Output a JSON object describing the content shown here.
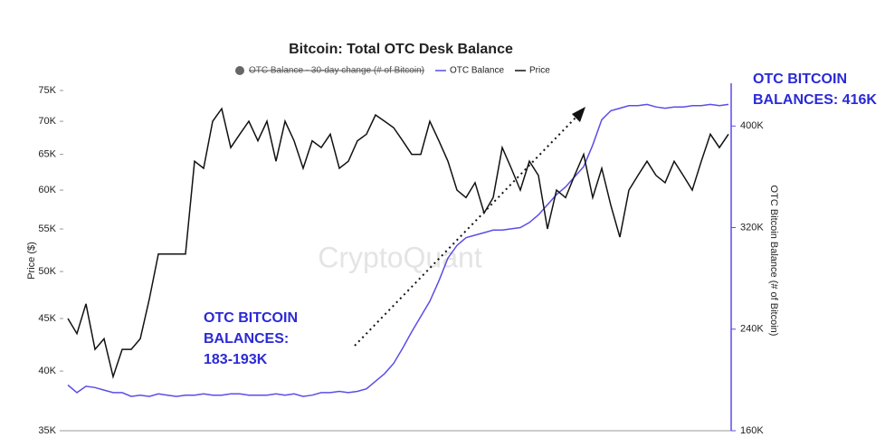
{
  "chart_data": {
    "type": "line",
    "title": "Bitcoin: Total OTC Desk Balance",
    "legend": [
      "OTC Balance - 30-day change (# of Bitcoin)"
    ],
    "ylabel": "Price ($)",
    "y2label": "OTC Bitcoin Balance (# of Bitcoin)",
    "watermark": "CryptoQuant",
    "yscale": "log",
    "ylim": [
      35000,
      75000
    ],
    "yticks": [
      {
        "value": 35000,
        "label": "35K"
      },
      {
        "value": 40000,
        "label": "40K"
      },
      {
        "value": 45000,
        "label": "45K"
      },
      {
        "value": 50000,
        "label": "50K"
      },
      {
        "value": 55000,
        "label": "55K"
      },
      {
        "value": 60000,
        "label": "60K"
      },
      {
        "value": 65000,
        "label": "65K"
      },
      {
        "value": 70000,
        "label": "70K"
      },
      {
        "value": 75000,
        "label": "75K"
      }
    ],
    "y2lim": [
      160000,
      428000
    ],
    "y2ticks": [
      {
        "value": 160000,
        "label": "160K"
      },
      {
        "value": 240000,
        "label": "240K"
      },
      {
        "value": 320000,
        "label": "320K"
      },
      {
        "value": 400000,
        "label": "400K"
      }
    ],
    "annotations": [
      [
        "OTC BITCOIN",
        "BALANCES: 416K"
      ],
      [
        "OTC BITCOIN",
        "BALANCES:",
        "183-193K"
      ]
    ],
    "series": [
      {
        "name": "OTC Balance",
        "color": "#5b4de8",
        "axis": "y2",
        "values": [
          196000,
          190000,
          195000,
          194000,
          192000,
          190000,
          190000,
          187000,
          188000,
          187000,
          189000,
          188000,
          187000,
          188000,
          188000,
          189000,
          188000,
          188000,
          189000,
          189000,
          188000,
          188000,
          188000,
          189000,
          188000,
          189000,
          187000,
          188000,
          190000,
          190000,
          191000,
          190000,
          191000,
          193000,
          199000,
          205000,
          213000,
          225000,
          238000,
          250000,
          262000,
          278000,
          296000,
          306000,
          312000,
          314000,
          316000,
          318000,
          318000,
          319000,
          320000,
          324000,
          330000,
          338000,
          346000,
          352000,
          360000,
          368000,
          385000,
          405000,
          412000,
          414000,
          416000,
          416000,
          417000,
          415000,
          414000,
          415000,
          415000,
          416000,
          416000,
          417000,
          416000,
          417000
        ]
      },
      {
        "name": "Price",
        "color": "#111111",
        "values": [
          45000,
          43500,
          46500,
          42000,
          43000,
          39500,
          42000,
          42000,
          43000,
          47000,
          52000,
          52000,
          52000,
          52000,
          64000,
          63000,
          70000,
          72000,
          66000,
          68000,
          70000,
          67000,
          70000,
          64000,
          70000,
          67000,
          63000,
          67000,
          66000,
          68000,
          63000,
          64000,
          67000,
          68000,
          71000,
          70000,
          69000,
          67000,
          65000,
          65000,
          70000,
          67000,
          64000,
          60000,
          59000,
          61000,
          57000,
          59000,
          66000,
          63000,
          60000,
          64000,
          62000,
          55000,
          60000,
          59000,
          62000,
          65000,
          59000,
          63000,
          58000,
          54000,
          60000,
          62000,
          64000,
          62000,
          61000,
          64000,
          62000,
          60000,
          64000,
          68000,
          66000,
          68000
        ]
      }
    ]
  }
}
